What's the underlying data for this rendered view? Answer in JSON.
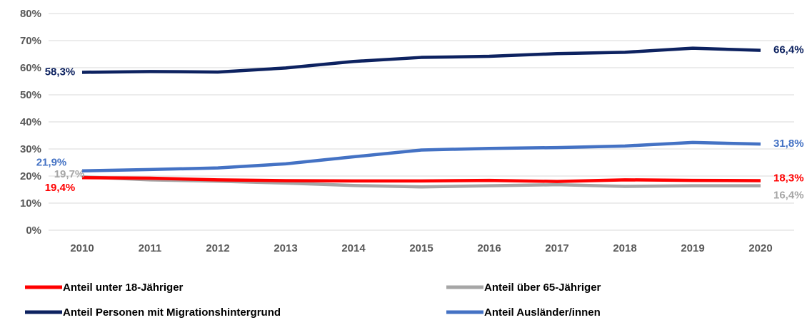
{
  "chart_data": {
    "type": "line",
    "x": [
      "2010",
      "2011",
      "2012",
      "2013",
      "2014",
      "2015",
      "2016",
      "2017",
      "2018",
      "2019",
      "2020"
    ],
    "series": [
      {
        "name": "Anteil unter 18-Jähriger",
        "color": "#ff0000",
        "values": [
          19.4,
          19.2,
          18.6,
          18.3,
          18.2,
          18.2,
          18.4,
          18.0,
          18.6,
          18.4,
          18.3
        ],
        "value_labels": [
          "19,4%",
          null,
          null,
          null,
          null,
          null,
          null,
          null,
          null,
          null,
          "18,3%"
        ]
      },
      {
        "name": "Anteil über 65-Jähriger",
        "color": "#a6a6a6",
        "values": [
          19.7,
          18.6,
          18.1,
          17.4,
          16.5,
          16.0,
          16.4,
          16.8,
          16.2,
          16.4,
          16.4
        ],
        "value_labels": [
          "19,7%",
          null,
          null,
          null,
          null,
          null,
          null,
          null,
          null,
          null,
          "16,4%"
        ]
      },
      {
        "name": "Anteil Personen mit Migrationshintergrund",
        "color": "#0d2260",
        "values": [
          58.3,
          58.6,
          58.4,
          59.9,
          62.3,
          63.8,
          64.2,
          65.2,
          65.7,
          67.2,
          66.4
        ],
        "value_labels": [
          "58,3%",
          null,
          null,
          null,
          null,
          null,
          null,
          null,
          null,
          null,
          "66,4%"
        ]
      },
      {
        "name": "Anteil Ausländer/innen",
        "color": "#4472c4",
        "values": [
          21.9,
          22.4,
          23.0,
          24.5,
          27.1,
          29.6,
          30.2,
          30.5,
          31.1,
          32.4,
          31.8
        ],
        "value_labels": [
          "21,9%",
          null,
          null,
          null,
          null,
          null,
          null,
          null,
          null,
          null,
          "31,8%"
        ]
      }
    ],
    "ylim": [
      0,
      80
    ],
    "yticks": [
      {
        "value": 0,
        "label": "0%"
      },
      {
        "value": 10,
        "label": "10%"
      },
      {
        "value": 20,
        "label": "20%"
      },
      {
        "value": 30,
        "label": "30%"
      },
      {
        "value": 40,
        "label": "40%"
      },
      {
        "value": 50,
        "label": "50%"
      },
      {
        "value": 60,
        "label": "60%"
      },
      {
        "value": 70,
        "label": "70%"
      },
      {
        "value": 80,
        "label": "80%"
      }
    ],
    "grid": true
  }
}
